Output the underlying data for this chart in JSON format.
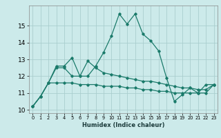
{
  "title": "",
  "xlabel": "Humidex (Indice chaleur)",
  "bg_color": "#cceaea",
  "grid_color": "#aacece",
  "line_color": "#1a7a6a",
  "xlim": [
    -0.5,
    23.5
  ],
  "ylim": [
    9.8,
    16.2
  ],
  "xticks": [
    0,
    1,
    2,
    3,
    4,
    5,
    6,
    7,
    8,
    9,
    10,
    11,
    12,
    13,
    14,
    15,
    16,
    17,
    18,
    19,
    20,
    21,
    22,
    23
  ],
  "yticks": [
    10,
    11,
    12,
    13,
    14,
    15
  ],
  "series": [
    [
      10.2,
      10.8,
      11.6,
      12.6,
      12.6,
      13.1,
      12.0,
      12.0,
      12.6,
      13.4,
      14.4,
      15.7,
      15.1,
      15.7,
      14.5,
      14.1,
      13.5,
      11.9,
      10.5,
      10.9,
      11.3,
      11.0,
      11.5,
      11.5
    ],
    [
      10.2,
      10.8,
      11.6,
      12.5,
      12.5,
      12.0,
      12.0,
      12.9,
      12.5,
      12.2,
      12.1,
      12.0,
      11.9,
      11.8,
      11.7,
      11.7,
      11.6,
      11.5,
      11.4,
      11.3,
      11.3,
      11.2,
      11.2,
      11.5
    ],
    [
      10.2,
      10.8,
      11.6,
      11.6,
      11.6,
      11.6,
      11.5,
      11.5,
      11.5,
      11.4,
      11.4,
      11.4,
      11.3,
      11.3,
      11.2,
      11.2,
      11.1,
      11.1,
      11.0,
      11.0,
      11.0,
      11.0,
      11.0,
      11.5
    ]
  ]
}
